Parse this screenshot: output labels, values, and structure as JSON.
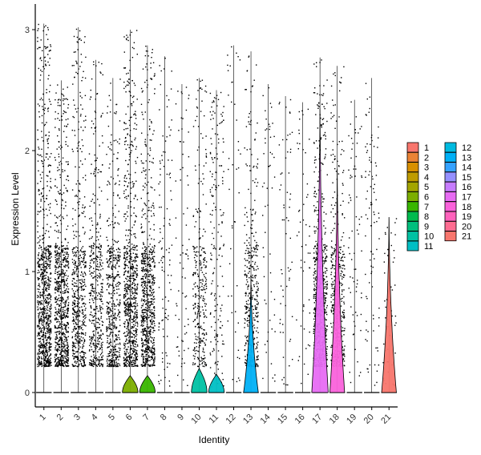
{
  "chart_data": {
    "type": "violin",
    "xlabel": "Identity",
    "ylabel": "Expression Level",
    "categories": [
      "1",
      "2",
      "3",
      "4",
      "5",
      "6",
      "7",
      "8",
      "9",
      "10",
      "11",
      "12",
      "13",
      "14",
      "15",
      "16",
      "17",
      "18",
      "19",
      "20",
      "21"
    ],
    "ylim": [
      -0.15,
      3.25
    ],
    "yticks": [
      0,
      1,
      2,
      3
    ],
    "max_values": [
      3.05,
      2.58,
      3.02,
      2.75,
      2.6,
      3.0,
      2.87,
      2.78,
      2.55,
      2.6,
      2.5,
      2.87,
      2.82,
      2.55,
      2.45,
      2.4,
      2.77,
      2.7,
      2.42,
      2.6,
      1.45
    ],
    "violin_heights": [
      0,
      0,
      0,
      0,
      0,
      0.14,
      0.14,
      0,
      0,
      0.2,
      0.15,
      0,
      0.95,
      0,
      0,
      0,
      2.35,
      1.85,
      0,
      0,
      1.45
    ],
    "violin_halfwidths": [
      0,
      0,
      0,
      0,
      0,
      0.45,
      0.45,
      0,
      0,
      0.45,
      0.45,
      0,
      0.45,
      0,
      0,
      0,
      0.5,
      0.45,
      0,
      0,
      0.45
    ],
    "colors": [
      "#F8766D",
      "#EB8335",
      "#D89000",
      "#BF9C00",
      "#A3A500",
      "#7CAE00",
      "#39B600",
      "#00BB4E",
      "#00BF7D",
      "#00C1A3",
      "#00BFC4",
      "#00BAE0",
      "#00B0F6",
      "#35A2FF",
      "#9590FF",
      "#C77CFF",
      "#E76BF3",
      "#FA62DB",
      "#FF62BC",
      "#FF6C91",
      "#F8766D"
    ],
    "legend": {
      "labels": [
        "1",
        "2",
        "3",
        "4",
        "5",
        "6",
        "7",
        "8",
        "9",
        "10",
        "11",
        "12",
        "13",
        "14",
        "15",
        "16",
        "17",
        "18",
        "19",
        "20",
        "21"
      ],
      "placement": "right",
      "columns": 2
    },
    "grid": false
  }
}
